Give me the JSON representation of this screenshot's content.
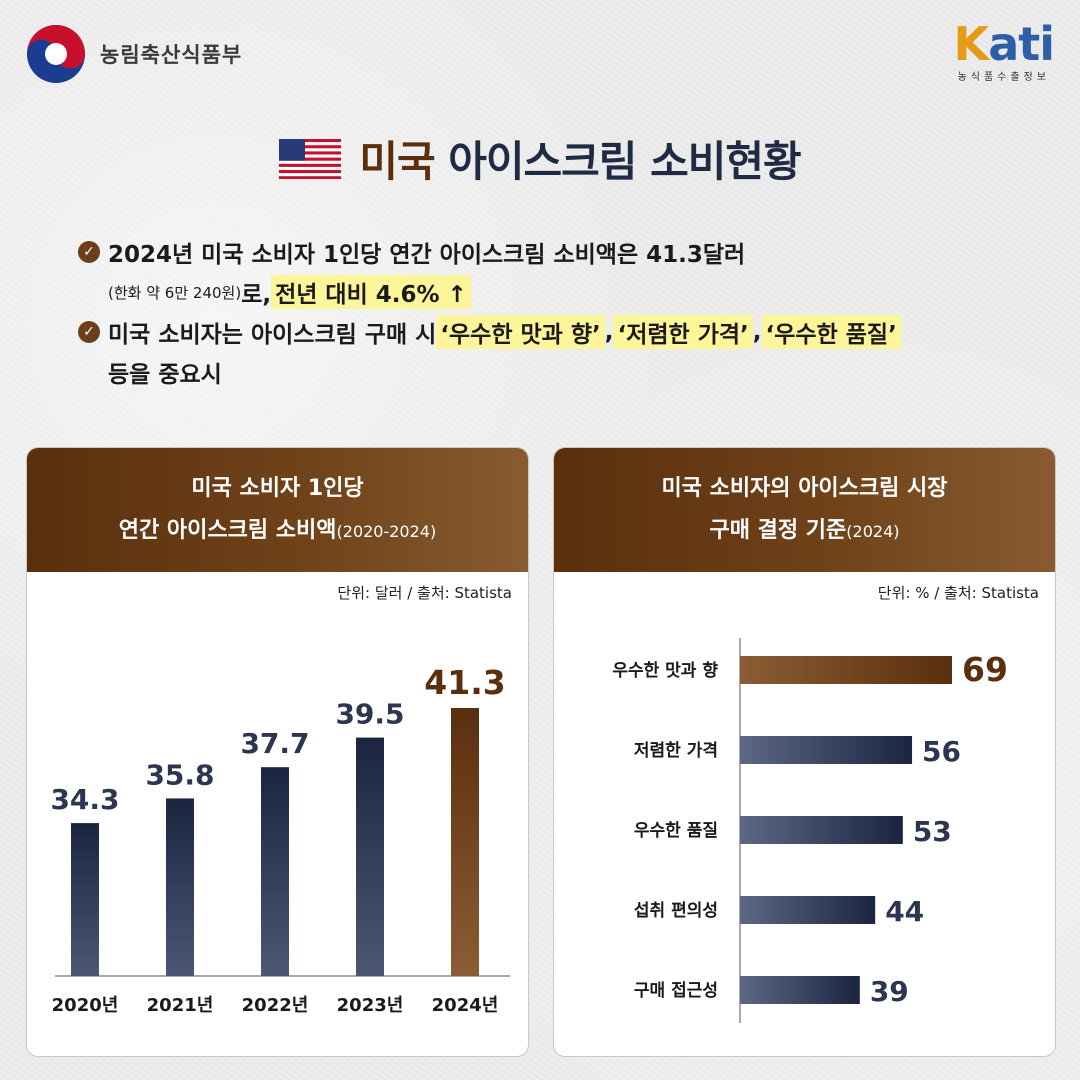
{
  "header": {
    "ministry_name": "농림축산식품부",
    "brand_logo": "Kati",
    "brand_sub": "농식품수출정보"
  },
  "title": {
    "highlight": "미국",
    "rest": "아이스크림 소비현황",
    "flag_icon": "us-flag-icon"
  },
  "bullets": {
    "b1_line1": "2024년 미국 소비자 1인당 연간 아이스크림 소비액은 41.3달러",
    "b1_small": "(한화 약 6만 240원)",
    "b1_mid": "로, ",
    "b1_mark": "전년 대비 4.6% ↑",
    "b2_line1_pre": "미국 소비자는 아이스크림 구매 시 ",
    "b2_mark1": "‘우수한 맛과 향’",
    "b2_sep1": ", ",
    "b2_mark2": "‘저렴한 가격’",
    "b2_sep2": ", ",
    "b2_mark3": "‘우수한 품질’",
    "b2_line2": "등을 중요시"
  },
  "colors": {
    "brown": "#5b2f0d",
    "navy": "#1f2a44",
    "highlight": "#fdf59a"
  },
  "left_card": {
    "title_line1": "미국 소비자 1인당",
    "title_line2": "연간 아이스크림 소비액",
    "title_years": "(2020-2024)",
    "unit": "단위: 달러 / 출처: Statista"
  },
  "right_card": {
    "title_line1": "미국 소비자의 아이스크림 시장",
    "title_line2": "구매 결정 기준",
    "title_years": "(2024)",
    "unit": "단위: % / 출처: Statista"
  },
  "chart_data": [
    {
      "type": "bar",
      "orientation": "vertical",
      "title": "미국 소비자 1인당 연간 아이스크림 소비액(2020-2024)",
      "categories": [
        "2020년",
        "2021년",
        "2022년",
        "2023년",
        "2024년"
      ],
      "values": [
        34.3,
        35.8,
        37.7,
        39.5,
        41.3
      ],
      "value_labels": [
        "34.3",
        "35.8",
        "37.7",
        "39.5",
        "41.3"
      ],
      "highlight_index": 4,
      "unit": "달러",
      "grid": false
    },
    {
      "type": "bar",
      "orientation": "horizontal",
      "title": "미국 소비자의 아이스크림 시장 구매 결정 기준(2024)",
      "categories": [
        "우수한 맛과 향",
        "저렴한 가격",
        "우수한 품질",
        "섭취 편의성",
        "구매 접근성"
      ],
      "values": [
        69,
        56,
        53,
        44,
        39
      ],
      "value_labels": [
        "69",
        "56",
        "53",
        "44",
        "39"
      ],
      "highlight_index": 0,
      "unit": "%",
      "grid": false
    }
  ]
}
